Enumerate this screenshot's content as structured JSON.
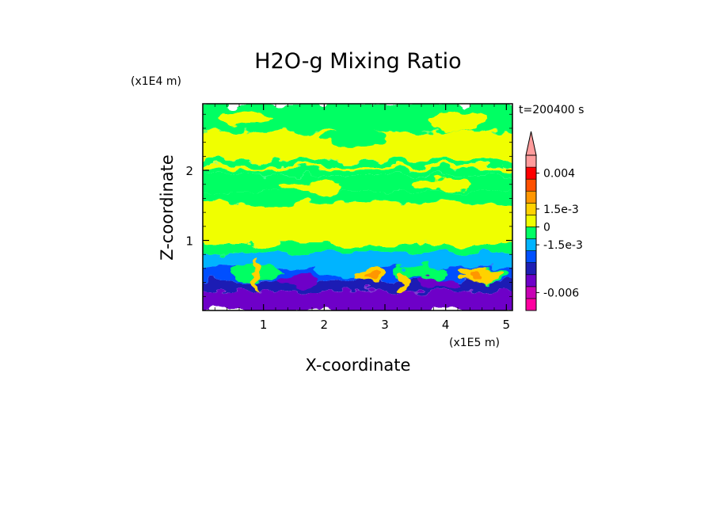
{
  "chart_data": {
    "type": "heatmap",
    "title": "H2O-g Mixing Ratio",
    "xlabel": "X-coordinate",
    "ylabel": "Z-coordinate",
    "x_scale_label": "(x1E5 m)",
    "y_scale_label": "(x1E4 m)",
    "time_label": "t=200400 s",
    "xlim": [
      0.0,
      5.1
    ],
    "ylim": [
      0.0,
      2.95
    ],
    "x_ticks": [
      1,
      2,
      3,
      4,
      5
    ],
    "y_ticks": [
      1,
      2
    ],
    "x_tick_labels": [
      "1",
      "2",
      "3",
      "4",
      "5"
    ],
    "y_tick_labels": [
      "1",
      "2"
    ],
    "colorbar": {
      "colors": [
        "#ff00a0",
        "#c800b4",
        "#6e00c8",
        "#1e1eb4",
        "#0050ff",
        "#00b4ff",
        "#00ff64",
        "#f0ff00",
        "#ffd200",
        "#ff9600",
        "#ff5000",
        "#ff0000",
        "#ff9c9c"
      ],
      "labels": [
        {
          "text": "0.004",
          "level": 11.5
        },
        {
          "text": "1.5e-3",
          "level": 8.5
        },
        {
          "text": "0",
          "level": 7
        },
        {
          "text": "-1.5e-3",
          "level": 5.5
        },
        {
          "text": "-0.006",
          "level": 1.5
        }
      ]
    },
    "bands": [
      {
        "z": [
          2.55,
          2.95
        ],
        "color": "#00ff64"
      },
      {
        "z": [
          2.15,
          2.55
        ],
        "color": "#f0ff00"
      },
      {
        "z": [
          2.06,
          2.15
        ],
        "color": "#00ff64"
      },
      {
        "z": [
          2.01,
          2.06
        ],
        "color": "#f0ff00"
      },
      {
        "z": [
          1.93,
          2.01
        ],
        "color": "#00ff64"
      },
      {
        "z": [
          1.7,
          1.93
        ],
        "color": "#00ff64"
      },
      {
        "z": [
          1.55,
          1.7
        ],
        "color": "#00ff64"
      },
      {
        "z": [
          0.95,
          1.55
        ],
        "color": "#f0ff00"
      },
      {
        "z": [
          0.82,
          0.95
        ],
        "color": "#00ff64"
      },
      {
        "z": [
          0.62,
          0.82
        ],
        "color": "#00b4ff"
      },
      {
        "z": [
          0.42,
          0.62
        ],
        "color": "#0050ff"
      },
      {
        "z": [
          0.28,
          0.42
        ],
        "color": "#1e1eb4"
      },
      {
        "z": [
          0.0,
          0.28
        ],
        "color": "#6e00c8"
      }
    ],
    "blobs": [
      {
        "x": 0.7,
        "z": 2.75,
        "rx": 0.45,
        "rz": 0.12,
        "color": "#f0ff00"
      },
      {
        "x": 2.5,
        "z": 2.45,
        "rx": 0.6,
        "rz": 0.12,
        "color": "#00ff64"
      },
      {
        "x": 4.2,
        "z": 2.7,
        "rx": 0.5,
        "rz": 0.15,
        "color": "#f0ff00"
      },
      {
        "x": 1.8,
        "z": 1.75,
        "rx": 0.55,
        "rz": 0.08,
        "color": "#f0ff00"
      },
      {
        "x": 3.9,
        "z": 1.8,
        "rx": 0.5,
        "rz": 0.08,
        "color": "#f0ff00"
      },
      {
        "x": 1.2,
        "z": 1.55,
        "rx": 0.35,
        "rz": 0.06,
        "color": "#00ff64"
      },
      {
        "x": 0.9,
        "z": 0.55,
        "rx": 0.45,
        "rz": 0.12,
        "color": "#00ff64"
      },
      {
        "x": 2.3,
        "z": 0.6,
        "rx": 0.45,
        "rz": 0.12,
        "color": "#00b4ff"
      },
      {
        "x": 3.6,
        "z": 0.55,
        "rx": 0.45,
        "rz": 0.1,
        "color": "#00ff64"
      },
      {
        "x": 4.6,
        "z": 0.5,
        "rx": 0.4,
        "rz": 0.1,
        "color": "#00ff64"
      },
      {
        "x": 2.75,
        "z": 0.5,
        "rx": 0.2,
        "rz": 0.14,
        "color": "#ffd200"
      },
      {
        "x": 2.75,
        "z": 0.48,
        "rx": 0.1,
        "rz": 0.08,
        "color": "#ff9600"
      },
      {
        "x": 4.55,
        "z": 0.5,
        "rx": 0.35,
        "rz": 0.1,
        "color": "#ffd200"
      },
      {
        "x": 4.5,
        "z": 0.5,
        "rx": 0.15,
        "rz": 0.05,
        "color": "#ff9600"
      },
      {
        "x": 0.9,
        "z": 0.5,
        "rx": 0.05,
        "rz": 0.22,
        "color": "#ffd200"
      },
      {
        "x": 3.3,
        "z": 0.42,
        "rx": 0.07,
        "rz": 0.15,
        "color": "#ffd200"
      },
      {
        "x": 1.6,
        "z": 0.42,
        "rx": 0.3,
        "rz": 0.08,
        "color": "#6e00c8"
      },
      {
        "x": 3.85,
        "z": 0.4,
        "rx": 0.35,
        "rz": 0.08,
        "color": "#6e00c8"
      }
    ]
  }
}
